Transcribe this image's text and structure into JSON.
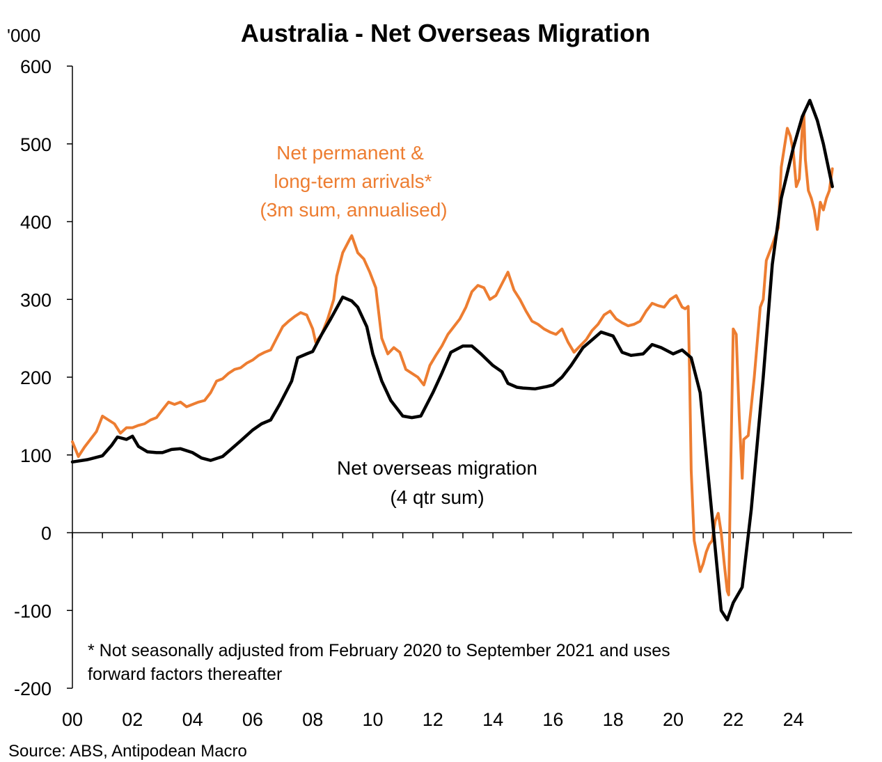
{
  "chart_data": {
    "type": "line",
    "title": "Australia - Net Overseas Migration",
    "y_unit": "'000",
    "ylim": [
      -200,
      600
    ],
    "yticks": [
      -200,
      -100,
      0,
      100,
      200,
      300,
      400,
      500,
      600
    ],
    "xlim": [
      2000,
      2025.8
    ],
    "xticks": [
      {
        "x": 2000,
        "label": "00"
      },
      {
        "x": 2002,
        "label": "02"
      },
      {
        "x": 2004,
        "label": "04"
      },
      {
        "x": 2006,
        "label": "06"
      },
      {
        "x": 2008,
        "label": "08"
      },
      {
        "x": 2010,
        "label": "10"
      },
      {
        "x": 2012,
        "label": "12"
      },
      {
        "x": 2014,
        "label": "14"
      },
      {
        "x": 2016,
        "label": "16"
      },
      {
        "x": 2018,
        "label": "18"
      },
      {
        "x": 2020,
        "label": "20"
      },
      {
        "x": 2022,
        "label": "22"
      },
      {
        "x": 2024,
        "label": "24"
      }
    ],
    "grid": false,
    "series": [
      {
        "name": "Net permanent & long-term arrivals* (3m sum, annualised)",
        "color": "#ED7D31",
        "points": [
          [
            2000.0,
            117
          ],
          [
            2000.2,
            98
          ],
          [
            2000.4,
            110
          ],
          [
            2000.6,
            120
          ],
          [
            2000.8,
            130
          ],
          [
            2001.0,
            150
          ],
          [
            2001.2,
            145
          ],
          [
            2001.4,
            140
          ],
          [
            2001.6,
            128
          ],
          [
            2001.8,
            135
          ],
          [
            2002.0,
            135
          ],
          [
            2002.2,
            138
          ],
          [
            2002.4,
            140
          ],
          [
            2002.6,
            145
          ],
          [
            2002.8,
            148
          ],
          [
            2003.0,
            158
          ],
          [
            2003.2,
            168
          ],
          [
            2003.4,
            165
          ],
          [
            2003.6,
            168
          ],
          [
            2003.8,
            162
          ],
          [
            2004.0,
            165
          ],
          [
            2004.2,
            168
          ],
          [
            2004.4,
            170
          ],
          [
            2004.6,
            180
          ],
          [
            2004.8,
            195
          ],
          [
            2005.0,
            198
          ],
          [
            2005.2,
            205
          ],
          [
            2005.4,
            210
          ],
          [
            2005.6,
            212
          ],
          [
            2005.8,
            218
          ],
          [
            2006.0,
            222
          ],
          [
            2006.2,
            228
          ],
          [
            2006.4,
            232
          ],
          [
            2006.6,
            235
          ],
          [
            2006.8,
            250
          ],
          [
            2007.0,
            265
          ],
          [
            2007.2,
            272
          ],
          [
            2007.4,
            278
          ],
          [
            2007.6,
            283
          ],
          [
            2007.8,
            280
          ],
          [
            2008.0,
            262
          ],
          [
            2008.1,
            245
          ],
          [
            2008.3,
            255
          ],
          [
            2008.5,
            275
          ],
          [
            2008.7,
            300
          ],
          [
            2008.8,
            330
          ],
          [
            2009.0,
            360
          ],
          [
            2009.2,
            375
          ],
          [
            2009.3,
            382
          ],
          [
            2009.5,
            360
          ],
          [
            2009.7,
            352
          ],
          [
            2009.9,
            335
          ],
          [
            2010.1,
            315
          ],
          [
            2010.3,
            250
          ],
          [
            2010.5,
            230
          ],
          [
            2010.7,
            238
          ],
          [
            2010.9,
            232
          ],
          [
            2011.1,
            210
          ],
          [
            2011.3,
            205
          ],
          [
            2011.5,
            200
          ],
          [
            2011.7,
            190
          ],
          [
            2011.9,
            215
          ],
          [
            2012.1,
            228
          ],
          [
            2012.3,
            240
          ],
          [
            2012.5,
            255
          ],
          [
            2012.7,
            265
          ],
          [
            2012.9,
            275
          ],
          [
            2013.1,
            290
          ],
          [
            2013.3,
            310
          ],
          [
            2013.5,
            318
          ],
          [
            2013.7,
            315
          ],
          [
            2013.9,
            300
          ],
          [
            2014.1,
            305
          ],
          [
            2014.3,
            320
          ],
          [
            2014.5,
            335
          ],
          [
            2014.7,
            312
          ],
          [
            2014.9,
            300
          ],
          [
            2015.1,
            285
          ],
          [
            2015.3,
            272
          ],
          [
            2015.5,
            268
          ],
          [
            2015.7,
            262
          ],
          [
            2015.9,
            258
          ],
          [
            2016.1,
            255
          ],
          [
            2016.3,
            262
          ],
          [
            2016.5,
            245
          ],
          [
            2016.7,
            232
          ],
          [
            2016.9,
            240
          ],
          [
            2017.1,
            248
          ],
          [
            2017.3,
            260
          ],
          [
            2017.5,
            268
          ],
          [
            2017.7,
            280
          ],
          [
            2017.9,
            285
          ],
          [
            2018.1,
            275
          ],
          [
            2018.3,
            270
          ],
          [
            2018.5,
            266
          ],
          [
            2018.7,
            268
          ],
          [
            2018.9,
            272
          ],
          [
            2019.1,
            285
          ],
          [
            2019.3,
            295
          ],
          [
            2019.5,
            292
          ],
          [
            2019.7,
            290
          ],
          [
            2019.9,
            300
          ],
          [
            2020.1,
            305
          ],
          [
            2020.3,
            290
          ],
          [
            2020.4,
            288
          ],
          [
            2020.5,
            291
          ],
          [
            2020.55,
            200
          ],
          [
            2020.6,
            80
          ],
          [
            2020.7,
            -10
          ],
          [
            2020.8,
            -30
          ],
          [
            2020.9,
            -50
          ],
          [
            2021.0,
            -40
          ],
          [
            2021.1,
            -25
          ],
          [
            2021.2,
            -15
          ],
          [
            2021.3,
            -10
          ],
          [
            2021.4,
            15
          ],
          [
            2021.5,
            25
          ],
          [
            2021.6,
            0
          ],
          [
            2021.7,
            -40
          ],
          [
            2021.8,
            -75
          ],
          [
            2021.85,
            -80
          ],
          [
            2021.9,
            50
          ],
          [
            2022.0,
            262
          ],
          [
            2022.1,
            255
          ],
          [
            2022.2,
            150
          ],
          [
            2022.3,
            70
          ],
          [
            2022.35,
            120
          ],
          [
            2022.5,
            125
          ],
          [
            2022.7,
            200
          ],
          [
            2022.9,
            290
          ],
          [
            2023.0,
            300
          ],
          [
            2023.1,
            350
          ],
          [
            2023.3,
            370
          ],
          [
            2023.5,
            392
          ],
          [
            2023.6,
            470
          ],
          [
            2023.8,
            520
          ],
          [
            2023.9,
            510
          ],
          [
            2024.0,
            490
          ],
          [
            2024.1,
            445
          ],
          [
            2024.2,
            455
          ],
          [
            2024.3,
            520
          ],
          [
            2024.35,
            540
          ],
          [
            2024.4,
            480
          ],
          [
            2024.5,
            440
          ],
          [
            2024.6,
            430
          ],
          [
            2024.7,
            415
          ],
          [
            2024.8,
            390
          ],
          [
            2024.9,
            425
          ],
          [
            2025.0,
            415
          ],
          [
            2025.1,
            430
          ],
          [
            2025.2,
            440
          ],
          [
            2025.3,
            468
          ]
        ]
      },
      {
        "name": "Net overseas migration (4 qtr sum)",
        "color": "#000000",
        "points": [
          [
            2000.0,
            91
          ],
          [
            2000.5,
            94
          ],
          [
            2001.0,
            99
          ],
          [
            2001.3,
            112
          ],
          [
            2001.5,
            123
          ],
          [
            2001.8,
            120
          ],
          [
            2002.0,
            124
          ],
          [
            2002.2,
            111
          ],
          [
            2002.5,
            104
          ],
          [
            2002.8,
            103
          ],
          [
            2003.0,
            103
          ],
          [
            2003.3,
            107
          ],
          [
            2003.6,
            108
          ],
          [
            2004.0,
            103
          ],
          [
            2004.3,
            96
          ],
          [
            2004.6,
            93
          ],
          [
            2005.0,
            98
          ],
          [
            2005.3,
            108
          ],
          [
            2005.6,
            118
          ],
          [
            2006.0,
            132
          ],
          [
            2006.3,
            140
          ],
          [
            2006.6,
            145
          ],
          [
            2006.9,
            165
          ],
          [
            2007.3,
            195
          ],
          [
            2007.5,
            225
          ],
          [
            2007.8,
            230
          ],
          [
            2008.0,
            233
          ],
          [
            2008.3,
            255
          ],
          [
            2008.6,
            275
          ],
          [
            2009.0,
            303
          ],
          [
            2009.3,
            298
          ],
          [
            2009.5,
            290
          ],
          [
            2009.8,
            265
          ],
          [
            2010.0,
            230
          ],
          [
            2010.3,
            195
          ],
          [
            2010.6,
            170
          ],
          [
            2011.0,
            150
          ],
          [
            2011.3,
            148
          ],
          [
            2011.6,
            150
          ],
          [
            2012.0,
            180
          ],
          [
            2012.3,
            205
          ],
          [
            2012.6,
            232
          ],
          [
            2013.0,
            240
          ],
          [
            2013.3,
            240
          ],
          [
            2013.6,
            230
          ],
          [
            2014.0,
            215
          ],
          [
            2014.3,
            207
          ],
          [
            2014.5,
            192
          ],
          [
            2014.8,
            187
          ],
          [
            2015.0,
            186
          ],
          [
            2015.4,
            185
          ],
          [
            2015.8,
            188
          ],
          [
            2016.0,
            190
          ],
          [
            2016.3,
            200
          ],
          [
            2016.6,
            215
          ],
          [
            2017.0,
            238
          ],
          [
            2017.3,
            248
          ],
          [
            2017.6,
            258
          ],
          [
            2018.0,
            253
          ],
          [
            2018.3,
            232
          ],
          [
            2018.6,
            228
          ],
          [
            2019.0,
            230
          ],
          [
            2019.3,
            242
          ],
          [
            2019.6,
            238
          ],
          [
            2020.0,
            230
          ],
          [
            2020.3,
            235
          ],
          [
            2020.6,
            225
          ],
          [
            2020.9,
            180
          ],
          [
            2021.2,
            60
          ],
          [
            2021.6,
            -100
          ],
          [
            2021.8,
            -112
          ],
          [
            2022.0,
            -90
          ],
          [
            2022.3,
            -70
          ],
          [
            2022.6,
            30
          ],
          [
            2023.0,
            200
          ],
          [
            2023.3,
            345
          ],
          [
            2023.6,
            430
          ],
          [
            2024.0,
            495
          ],
          [
            2024.3,
            535
          ],
          [
            2024.55,
            556
          ],
          [
            2024.8,
            530
          ],
          [
            2025.0,
            500
          ],
          [
            2025.3,
            445
          ]
        ]
      }
    ],
    "annotations": {
      "orange_label": [
        "Net permanent &",
        "long-term arrivals*",
        "(3m sum, annualised)"
      ],
      "black_label": [
        "Net overseas migration",
        "(4 qtr sum)"
      ],
      "footnote": [
        "* Not seasonally adjusted from February 2020 to September 2021 and uses",
        "forward factors thereafter"
      ]
    },
    "source": "Source: ABS, Antipodean Macro"
  }
}
